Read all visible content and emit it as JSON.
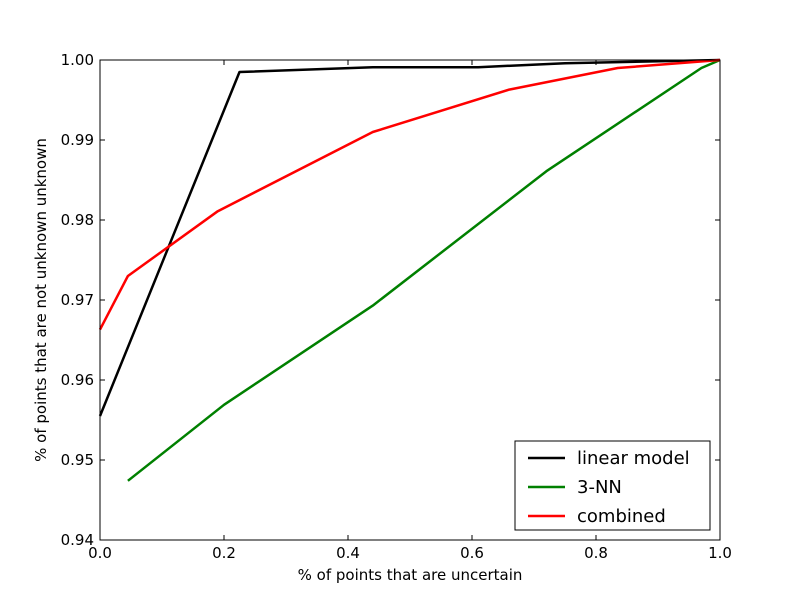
{
  "chart_data": {
    "type": "line",
    "title": "",
    "xlabel": "% of points that are uncertain",
    "ylabel": "% of points that are not unknown unknown",
    "xlim": [
      0.0,
      1.0
    ],
    "ylim": [
      0.94,
      1.0
    ],
    "xticks": [
      0.0,
      0.2,
      0.4,
      0.6,
      0.8,
      1.0
    ],
    "xtick_labels": [
      "0.0",
      "0.2",
      "0.4",
      "0.6",
      "0.8",
      "1.0"
    ],
    "yticks": [
      0.94,
      0.95,
      0.96,
      0.97,
      0.98,
      0.99,
      1.0
    ],
    "ytick_labels": [
      "0.94",
      "0.95",
      "0.96",
      "0.97",
      "0.98",
      "0.99",
      "1.00"
    ],
    "grid": false,
    "legend_position": "lower-right",
    "series": [
      {
        "name": "linear model",
        "color": "#000000",
        "x": [
          0.0,
          0.225,
          0.44,
          0.61,
          0.75,
          1.0
        ],
        "y": [
          0.9555,
          0.9985,
          0.9991,
          0.9991,
          0.9996,
          1.0
        ]
      },
      {
        "name": "3-NN",
        "color": "#008000",
        "x": [
          0.045,
          0.2,
          0.44,
          0.72,
          0.97,
          1.0
        ],
        "y": [
          0.9474,
          0.9569,
          0.9693,
          0.9861,
          0.999,
          1.0
        ]
      },
      {
        "name": "combined",
        "color": "#ff0000",
        "x": [
          0.0,
          0.045,
          0.19,
          0.44,
          0.66,
          0.835,
          1.0
        ],
        "y": [
          0.9663,
          0.973,
          0.9811,
          0.991,
          0.9963,
          0.999,
          1.0
        ]
      }
    ]
  }
}
